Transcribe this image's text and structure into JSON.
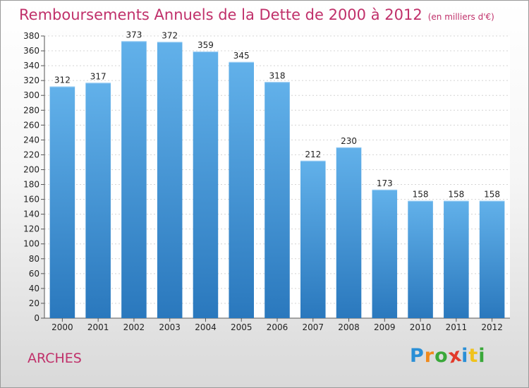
{
  "header": {
    "title": "Remboursements Annuels de la Dette de 2000 à 2012",
    "subtitle": "(en milliers d'€)"
  },
  "place": "ARCHES",
  "logo": {
    "letters": [
      "P",
      "r",
      "o",
      "x",
      "i",
      "t",
      "i"
    ],
    "colors": [
      "#2a8fd6",
      "#f08a1c",
      "#3aa83a",
      "#e23a2a",
      "#2a8fd6",
      "#f0c21c",
      "#3aa83a"
    ]
  },
  "colors": {
    "bar": "#3f95d6",
    "bar_light": "#62b1ea",
    "bar_dark": "#2a78bd",
    "accent": "#c0306a"
  },
  "chart_data": {
    "type": "bar",
    "title": "Remboursements Annuels de la Dette de 2000 à 2012",
    "subtitle": "(en milliers d'€)",
    "categories": [
      "2000",
      "2001",
      "2002",
      "2003",
      "2004",
      "2005",
      "2006",
      "2007",
      "2008",
      "2009",
      "2010",
      "2011",
      "2012"
    ],
    "values": [
      312,
      317,
      373,
      372,
      359,
      345,
      318,
      212,
      230,
      173,
      158,
      158,
      158
    ],
    "ylim": [
      0,
      380
    ],
    "ytick_step": 20,
    "grid": true
  }
}
